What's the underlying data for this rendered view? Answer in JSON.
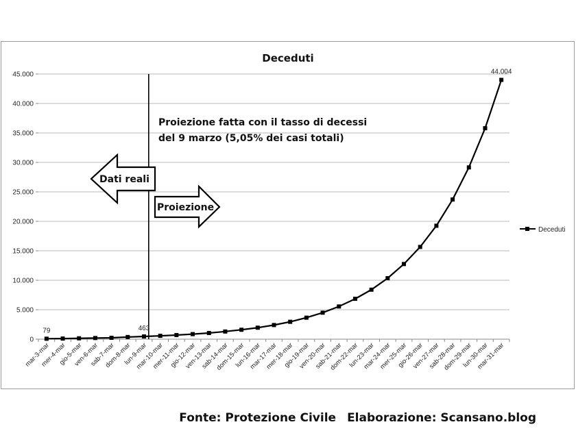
{
  "chart_data": {
    "type": "line",
    "title": "Deceduti",
    "xlabel": "",
    "ylabel": "",
    "ylim": [
      0,
      45000
    ],
    "yticks": [
      "0",
      "5.000",
      "10.000",
      "15.000",
      "20.000",
      "25.000",
      "30.000",
      "35.000",
      "40.000",
      "45.000"
    ],
    "ytick_values": [
      0,
      5000,
      10000,
      15000,
      20000,
      25000,
      30000,
      35000,
      40000,
      45000
    ],
    "grid": true,
    "legend_position": "right",
    "categories": [
      "mar-3-mar",
      "mer-4-mar",
      "gio-5-mar",
      "ven-6-mar",
      "sab-7-mar",
      "dom-8-mar",
      "lun-9-mar",
      "mar-10-mar",
      "mer-11-mar",
      "gio-12-mar",
      "ven-13-mar",
      "sab-14-mar",
      "dom-15-mar",
      "lun-16-mar",
      "mar-17-mar",
      "mer-18-mar",
      "gio-19-mar",
      "ven-20-mar",
      "sab-21-mar",
      "dom-22-mar",
      "lun-23-mar",
      "mar-24-mar",
      "mer-25-mar",
      "gio-26-mar",
      "ven-27-mar",
      "sab-28-mar",
      "dom-29-mar",
      "lun-30-mar",
      "mar-31-mar"
    ],
    "series": [
      {
        "name": "Deceduti",
        "color": "#000000",
        "marker": "square",
        "values": [
          79,
          107,
          148,
          197,
          233,
          366,
          463,
          570,
          700,
          860,
          1050,
          1300,
          1600,
          1950,
          2400,
          2950,
          3650,
          4500,
          5550,
          6850,
          8400,
          10350,
          12750,
          15650,
          19250,
          23700,
          29150,
          35800,
          44004
        ]
      }
    ],
    "data_labels": [
      {
        "category": "mar-3-mar",
        "text": "79"
      },
      {
        "category": "lun-9-mar",
        "text": "463"
      },
      {
        "category": "mar-31-mar",
        "text": "44.004"
      }
    ],
    "divider_category": "lun-9-mar",
    "annotation": [
      "Proiezione fatta con il tasso di decessi",
      "del 9 marzo (5,05% dei casi totali)"
    ],
    "arrow_left_label": "Dati reali",
    "arrow_right_label": "Proiezione"
  },
  "footer": {
    "source": "Fonte: Protezione Civile",
    "elaboration": "Elaborazione: Scansano.blog"
  }
}
